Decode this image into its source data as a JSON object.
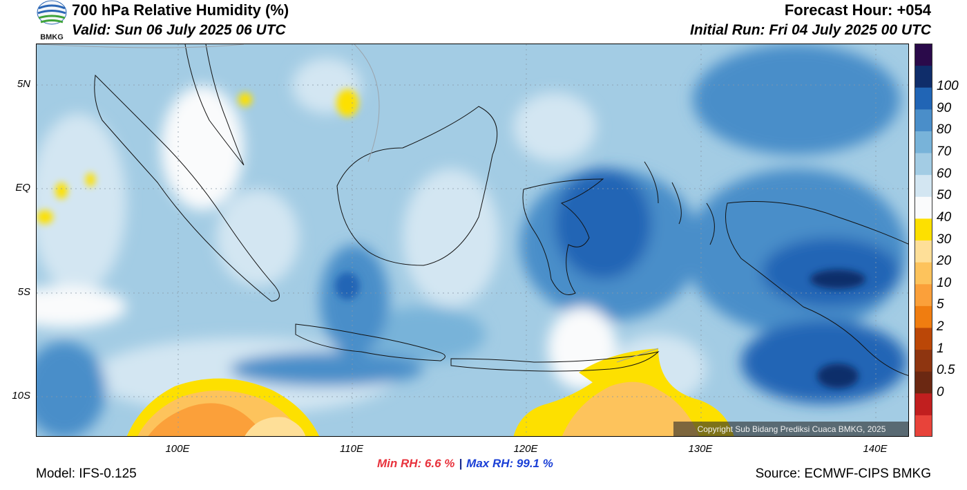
{
  "header": {
    "title": "700 hPa Relative Humidity (%)",
    "valid": "Valid: Sun 06 July 2025 06 UTC",
    "forecast_hour": "Forecast Hour: +054",
    "initial_run": "Initial Run: Fri 04 July 2025 00 UTC",
    "logo_text": "BMKG"
  },
  "map": {
    "lat_labels": [
      "5N",
      "EQ",
      "5S",
      "10S"
    ],
    "lon_labels": [
      "100E",
      "110E",
      "120E",
      "130E",
      "140E"
    ],
    "copyright": "Copyright Sub Bidang Prediksi Cuaca BMKG, 2025"
  },
  "colorbar": {
    "labels": [
      "100",
      "90",
      "80",
      "70",
      "60",
      "50",
      "40",
      "30",
      "20",
      "10",
      "5",
      "2",
      "1",
      "0.5",
      "0"
    ],
    "colors": [
      "#e8433a",
      "#c11f1f",
      "#6b2812",
      "#8e3510",
      "#bb4707",
      "#f07d10",
      "#fba03a",
      "#fdc35c",
      "#fedf98",
      "#fde000",
      "#fafbfc",
      "#d3e6f2",
      "#a3cce4",
      "#78b3d9",
      "#4a8ec9",
      "#2165b5",
      "#0f2d6a",
      "#2a0a4a"
    ]
  },
  "footer": {
    "min_rh": "Min RH:   6.6 %",
    "separator": "|",
    "max_rh": "Max RH:  99.1 %",
    "model": "Model: IFS-0.125",
    "source": "Source: ECMWF-CIPS BMKG"
  }
}
